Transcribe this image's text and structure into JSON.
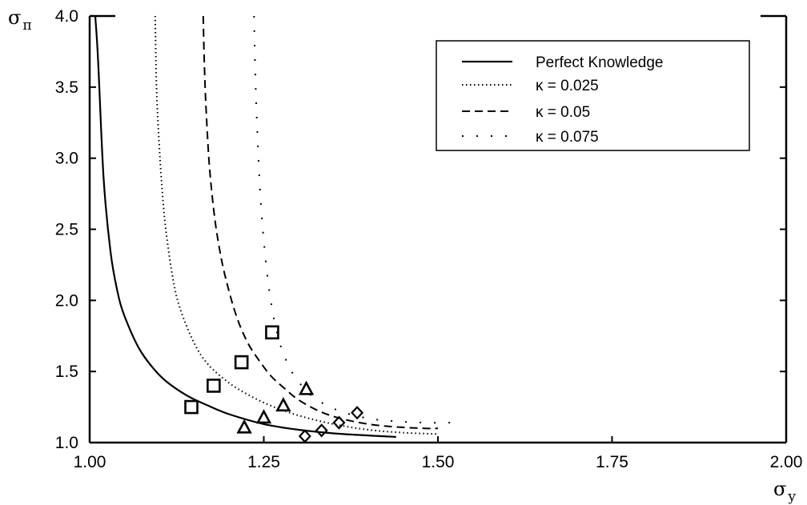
{
  "chart_data": {
    "type": "line",
    "title": "",
    "xlabel": "σ_y",
    "ylabel": "σ_π",
    "xlabel_main": "σ",
    "xlabel_sub": "y",
    "ylabel_main": "σ",
    "ylabel_sub": "π",
    "xlim": [
      1.0,
      2.0
    ],
    "ylim": [
      1.0,
      4.0
    ],
    "x_ticks": [
      "1.00",
      "1.25",
      "1.50",
      "1.75",
      "2.00"
    ],
    "y_ticks": [
      "1.0",
      "1.5",
      "2.0",
      "2.5",
      "3.0",
      "3.5",
      "4.0"
    ],
    "grid": false,
    "legend_position": "top-right",
    "series": [
      {
        "name": "Perfect Knowledge",
        "style": "solid",
        "x": [
          1.008,
          1.012,
          1.02,
          1.03,
          1.04,
          1.05,
          1.07,
          1.09,
          1.11,
          1.14,
          1.17,
          1.2,
          1.25,
          1.3,
          1.35,
          1.4,
          1.44
        ],
        "y": [
          4.0,
          3.7,
          2.86,
          2.34,
          2.06,
          1.89,
          1.67,
          1.53,
          1.43,
          1.33,
          1.26,
          1.2,
          1.13,
          1.09,
          1.065,
          1.05,
          1.04
        ]
      },
      {
        "name": "κ = 0.025",
        "style": "dotted",
        "x": [
          1.094,
          1.096,
          1.1,
          1.105,
          1.11,
          1.12,
          1.13,
          1.15,
          1.17,
          1.2,
          1.23,
          1.26,
          1.3,
          1.35,
          1.4,
          1.45,
          1.5
        ],
        "y": [
          4.0,
          3.5,
          3.08,
          2.72,
          2.47,
          2.14,
          1.94,
          1.7,
          1.55,
          1.42,
          1.33,
          1.26,
          1.19,
          1.13,
          1.09,
          1.07,
          1.06
        ]
      },
      {
        "name": "κ = 0.05",
        "style": "dashed",
        "x": [
          1.163,
          1.165,
          1.168,
          1.172,
          1.178,
          1.185,
          1.195,
          1.21,
          1.225,
          1.24,
          1.26,
          1.28,
          1.3,
          1.33,
          1.36,
          1.4,
          1.44,
          1.48,
          1.5
        ],
        "y": [
          4.0,
          3.6,
          3.26,
          2.94,
          2.64,
          2.4,
          2.16,
          1.9,
          1.72,
          1.6,
          1.47,
          1.38,
          1.3,
          1.22,
          1.17,
          1.13,
          1.11,
          1.1,
          1.1
        ]
      },
      {
        "name": "κ = 0.075",
        "style": "dash-dot",
        "x": [
          1.236,
          1.238,
          1.241,
          1.245,
          1.25,
          1.257,
          1.265,
          1.275,
          1.29,
          1.31,
          1.33,
          1.36,
          1.4,
          1.44,
          1.48,
          1.52
        ],
        "y": [
          4.0,
          3.55,
          3.15,
          2.74,
          2.42,
          2.1,
          1.86,
          1.67,
          1.5,
          1.37,
          1.29,
          1.22,
          1.17,
          1.15,
          1.14,
          1.14
        ]
      }
    ],
    "markers": [
      {
        "shape": "square",
        "points": [
          [
            1.146,
            1.25
          ],
          [
            1.178,
            1.4
          ],
          [
            1.218,
            1.565
          ],
          [
            1.262,
            1.775
          ]
        ]
      },
      {
        "shape": "triangle",
        "points": [
          [
            1.222,
            1.105
          ],
          [
            1.25,
            1.175
          ],
          [
            1.278,
            1.26
          ],
          [
            1.311,
            1.375
          ]
        ]
      },
      {
        "shape": "diamond",
        "points": [
          [
            1.309,
            1.045
          ],
          [
            1.333,
            1.085
          ],
          [
            1.358,
            1.14
          ],
          [
            1.384,
            1.21
          ]
        ]
      }
    ]
  }
}
